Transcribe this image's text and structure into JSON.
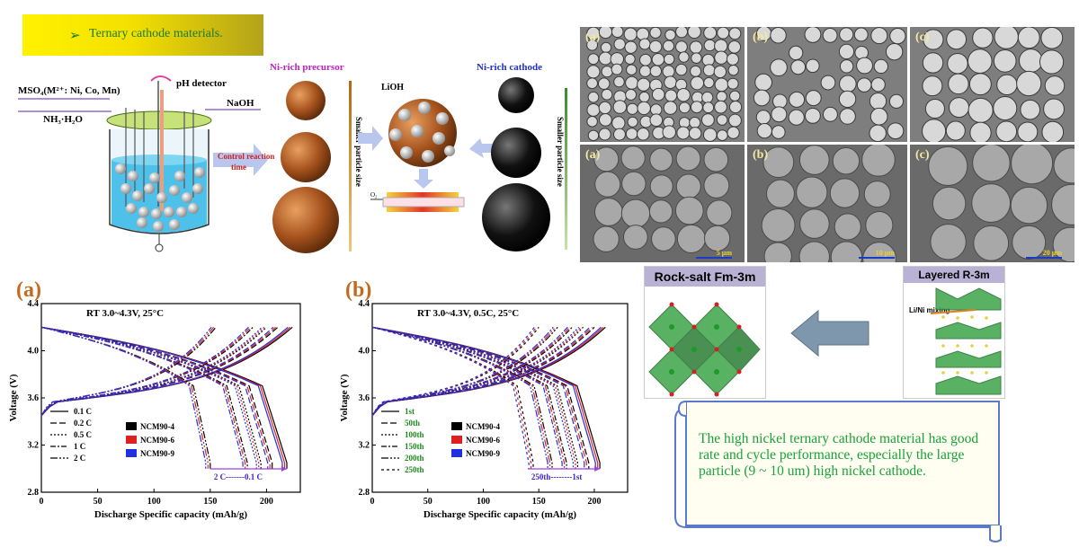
{
  "title": "Ternary cathode materials.",
  "synthesis": {
    "inlet": "MSO₄(M²⁺: Ni, Co, Mn)",
    "ammonia": "NH₃·H₂O",
    "ph": "pH detector",
    "naoh": "NaOH",
    "control": "Control reaction",
    "control2": "time",
    "precursor": "Ni-rich precursor",
    "cathode": "Ni-rich cathode",
    "lioh": "LiOH",
    "o2": "O₂",
    "smaller1": "Smaller particle size",
    "smaller2": "Smaller particle size"
  },
  "sem_labels": [
    "(a)",
    "(b)",
    "(c)",
    "(a)",
    "(b)",
    "(c)"
  ],
  "sem_scales": [
    "5 μm",
    "10 μm",
    "20 μm"
  ],
  "structures": {
    "rock": "Rock-salt Fm-3m",
    "layered": "Layered R-3m",
    "mixing": "Li/Ni mixing"
  },
  "note": "The high nickel ternary cathode material has good rate and cycle performance, especially the large particle (9 ~ 10 um) high nickel cathode.",
  "chart_data": [
    {
      "type": "line",
      "panel": "(a)",
      "title": "RT 3.0~4.3V, 25°C",
      "xlabel": "Discharge Specific capacity (mAh/g)",
      "ylabel": "Voltage (V)",
      "xlim": [
        0,
        230
      ],
      "ylim": [
        2.8,
        4.4
      ],
      "xticks": [
        0,
        50,
        100,
        150,
        200
      ],
      "yticks": [
        2.8,
        3.2,
        3.6,
        4.0,
        4.4
      ],
      "rates": [
        "0.1 C",
        "0.2 C",
        "0.5 C",
        "1 C",
        "2 C"
      ],
      "samples": [
        {
          "name": "NCM90-4",
          "color": "#000000"
        },
        {
          "name": "NCM90-6",
          "color": "#e02020"
        },
        {
          "name": "NCM90-9",
          "color": "#2030e0"
        }
      ],
      "discharge_end_capacity": {
        "0.1 C": 218,
        "0.2 C": 205,
        "0.5 C": 195,
        "1 C": 183,
        "2 C": 150
      },
      "annotation": "2 C-------0.1 C"
    },
    {
      "type": "line",
      "panel": "(b)",
      "title": "RT 3.0~4.3V, 0.5C, 25°C",
      "xlabel": "Discharge Specific capacity (mAh/g)",
      "ylabel": "Voltage (V)",
      "xlim": [
        0,
        230
      ],
      "ylim": [
        2.8,
        4.4
      ],
      "xticks": [
        0,
        50,
        100,
        150,
        200
      ],
      "yticks": [
        2.8,
        3.2,
        3.6,
        4.0,
        4.4
      ],
      "cycles": [
        "1st",
        "50th",
        "100th",
        "150th",
        "200th",
        "250th"
      ],
      "samples": [
        {
          "name": "NCM90-4",
          "color": "#000000"
        },
        {
          "name": "NCM90-6",
          "color": "#e02020"
        },
        {
          "name": "NCM90-9",
          "color": "#2030e0"
        }
      ],
      "discharge_end_capacity": {
        "1st": 205,
        "50th": 195,
        "100th": 185,
        "150th": 175,
        "200th": 162,
        "250th": 145
      },
      "annotation": "250th--------1st"
    }
  ]
}
